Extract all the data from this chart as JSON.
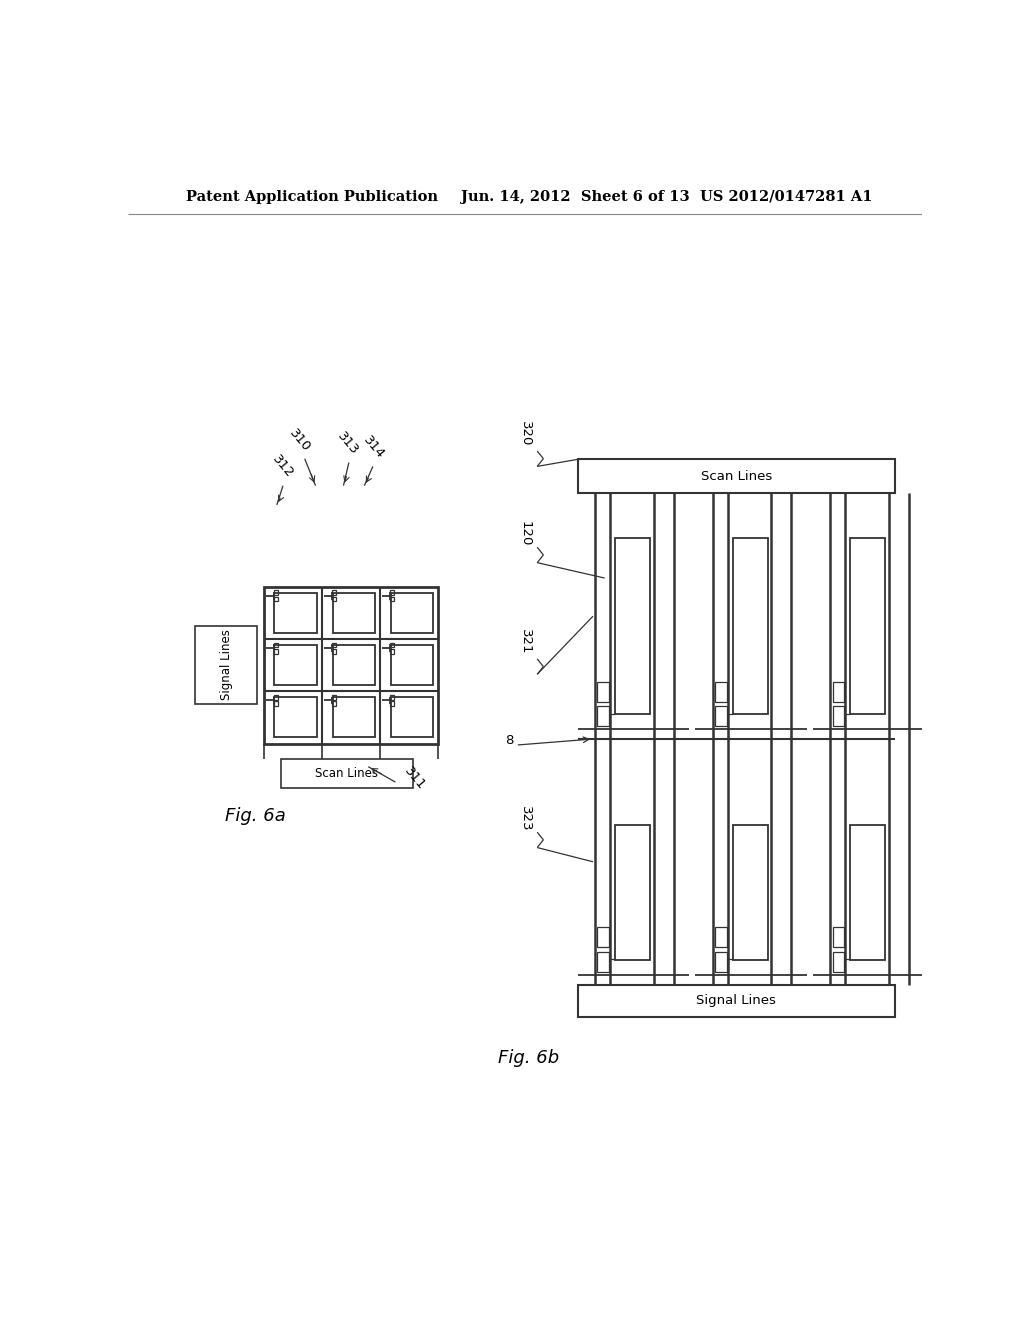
{
  "bg_color": "#ffffff",
  "header_left": "Patent Application Publication",
  "header_mid": "Jun. 14, 2012  Sheet 6 of 13",
  "header_right": "US 2012/0147281 A1",
  "fig6a_label": "Fig. 6a",
  "fig6b_label": "Fig. 6b",
  "lc": "#333333",
  "lc2": "#555555"
}
